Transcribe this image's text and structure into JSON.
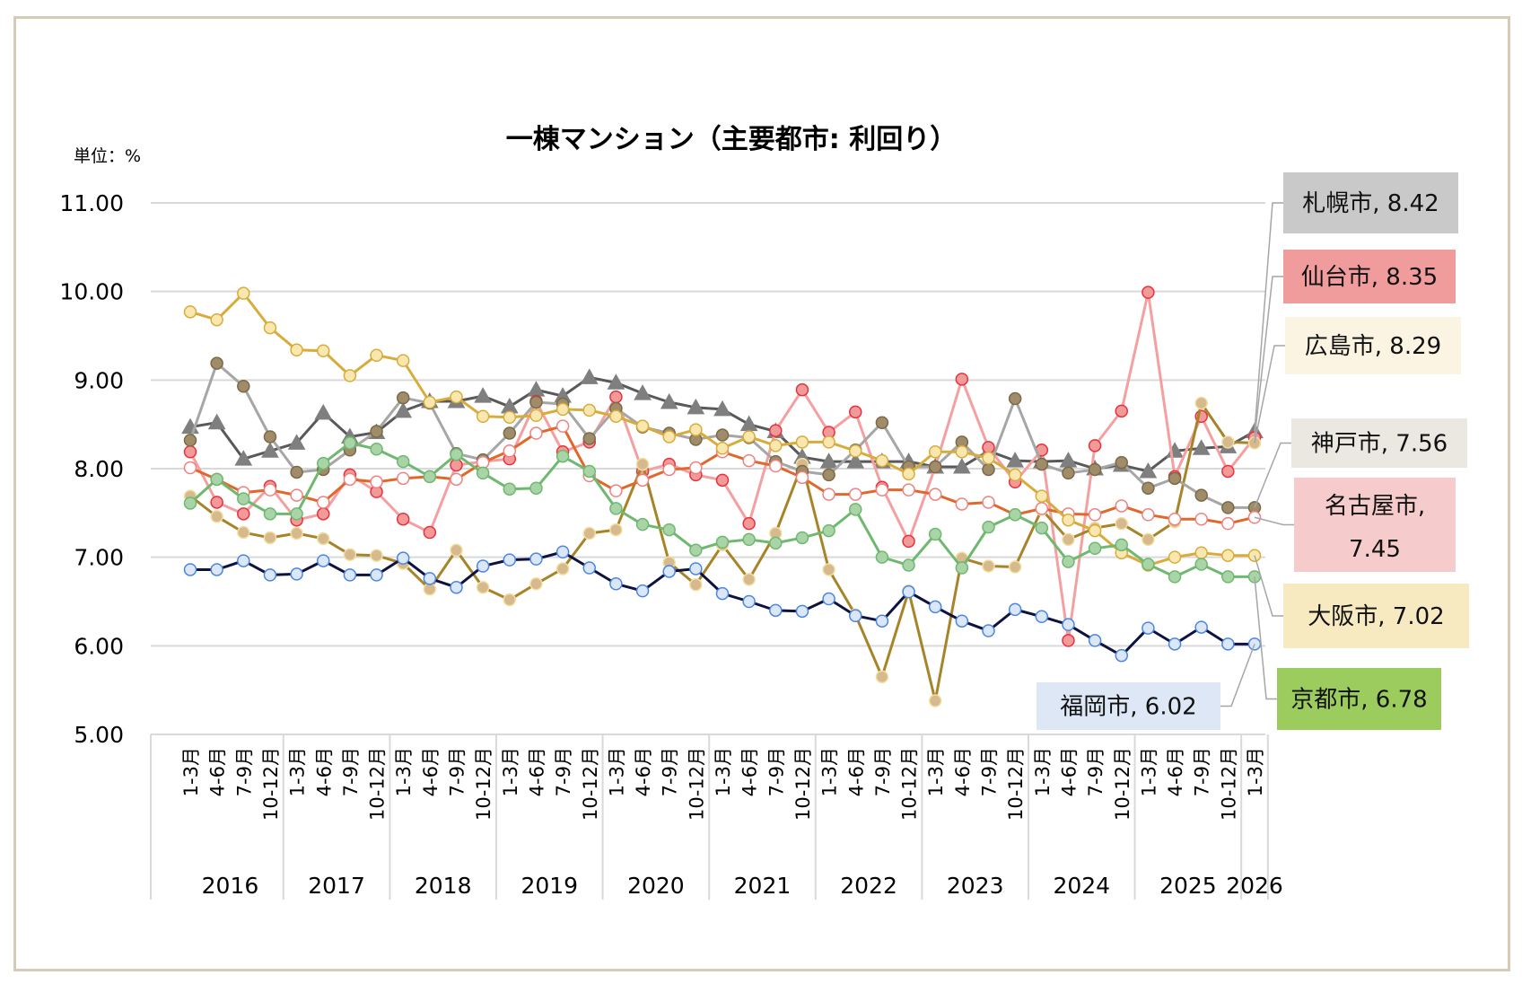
{
  "chart_data": {
    "type": "line",
    "title": "一棟マンション（主要都市: 利回り）",
    "unit_label": "単位：%",
    "xlabel": "",
    "ylabel": "",
    "ylim": [
      5.0,
      11.0
    ],
    "yticks": [
      "5.00",
      "6.00",
      "7.00",
      "8.00",
      "9.00",
      "10.00",
      "11.00"
    ],
    "grid": true,
    "legend": "data-labels-right",
    "quarters": [
      "1-3月",
      "4-6月",
      "7-9月",
      "10-12月"
    ],
    "years": [
      "2016",
      "2017",
      "2018",
      "2019",
      "2020",
      "2021",
      "2022",
      "2023",
      "2024",
      "2025",
      "2026"
    ],
    "x": [
      "2016 1-3月",
      "2016 4-6月",
      "2016 7-9月",
      "2016 10-12月",
      "2017 1-3月",
      "2017 4-6月",
      "2017 7-9月",
      "2017 10-12月",
      "2018 1-3月",
      "2018 4-6月",
      "2018 7-9月",
      "2018 10-12月",
      "2019 1-3月",
      "2019 4-6月",
      "2019 7-9月",
      "2019 10-12月",
      "2020 1-3月",
      "2020 4-6月",
      "2020 7-9月",
      "2020 10-12月",
      "2021 1-3月",
      "2021 4-6月",
      "2021 7-9月",
      "2021 10-12月",
      "2022 1-3月",
      "2022 4-6月",
      "2022 7-9月",
      "2022 10-12月",
      "2023 1-3月",
      "2023 4-6月",
      "2023 7-9月",
      "2023 10-12月",
      "2024 1-3月",
      "2024 4-6月",
      "2024 7-9月",
      "2024 10-12月",
      "2025 1-3月",
      "2025 4-6月",
      "2025 7-9月",
      "2025 10-12月",
      "2026 1-3月"
    ],
    "series": [
      {
        "name": "札幌市",
        "final_label": "札幌市, 8.42",
        "line": "#595959",
        "marker": "triangle",
        "fill": "#7f7f7f",
        "stroke": "#7f7f7f",
        "label_bg": "#c9c9c9",
        "values": [
          8.47,
          8.52,
          8.11,
          8.2,
          8.29,
          8.63,
          8.36,
          8.41,
          8.65,
          8.76,
          8.76,
          8.82,
          8.7,
          8.89,
          8.82,
          9.03,
          8.97,
          8.85,
          8.75,
          8.69,
          8.67,
          8.5,
          8.42,
          8.13,
          8.08,
          8.08,
          8.08,
          8.08,
          8.02,
          8.02,
          8.2,
          8.09,
          8.08,
          8.09,
          8.0,
          8.04,
          7.97,
          8.2,
          8.23,
          8.25,
          8.42
        ]
      },
      {
        "name": "仙台市",
        "final_label": "仙台市, 8.35",
        "line": "#f4a0a0",
        "marker": "circle",
        "fill": "#f29a9a",
        "stroke": "#e8313b",
        "label_bg": "#f19c9c",
        "values": [
          8.19,
          7.62,
          7.49,
          7.8,
          7.42,
          7.49,
          7.93,
          7.74,
          7.43,
          7.28,
          8.04,
          8.08,
          8.11,
          8.76,
          8.19,
          8.3,
          8.81,
          7.97,
          8.05,
          7.93,
          7.87,
          7.38,
          8.43,
          8.89,
          8.41,
          8.64,
          7.79,
          7.18,
          8.02,
          9.01,
          8.24,
          7.85,
          8.21,
          6.06,
          8.26,
          8.65,
          9.99,
          7.91,
          8.59,
          7.97,
          8.35
        ]
      },
      {
        "name": "広島市",
        "final_label": "広島市, 8.29",
        "line": "#a88429",
        "marker": "circle",
        "fill": "#d6b98c",
        "stroke": "#f2dfa0",
        "label_bg": "#fbf4e2",
        "values": [
          7.69,
          7.46,
          7.28,
          7.22,
          7.27,
          7.21,
          7.03,
          7.02,
          6.93,
          6.64,
          7.08,
          6.66,
          6.52,
          6.7,
          6.87,
          7.27,
          7.31,
          8.05,
          6.94,
          6.69,
          7.14,
          6.75,
          7.27,
          8.05,
          6.86,
          6.35,
          5.65,
          6.62,
          5.38,
          6.99,
          6.9,
          6.89,
          7.54,
          7.2,
          7.33,
          7.38,
          7.2,
          7.4,
          8.74,
          8.3,
          8.29
        ]
      },
      {
        "name": "神戸市",
        "final_label": "神戸市, 7.56",
        "line": "#a6a6a6",
        "marker": "circle",
        "fill": "#a08c68",
        "stroke": "#7a6a48",
        "label_bg": "#ebe7e1",
        "values": [
          8.32,
          9.19,
          8.93,
          8.36,
          7.96,
          7.99,
          8.21,
          8.42,
          8.8,
          8.74,
          8.17,
          8.1,
          8.4,
          8.75,
          8.73,
          8.34,
          8.68,
          8.47,
          8.4,
          8.33,
          8.38,
          8.35,
          8.08,
          7.97,
          7.93,
          8.21,
          8.52,
          8.02,
          8.02,
          8.3,
          7.99,
          8.79,
          8.05,
          7.95,
          7.99,
          8.07,
          7.78,
          7.89,
          7.7,
          7.56,
          7.56
        ]
      },
      {
        "name": "名古屋市",
        "final_label": "名古屋市, 7.45",
        "line": "#e0682a",
        "marker": "circle",
        "fill": "#ffffff",
        "stroke": "#f08080",
        "label_bg": "#f6cbcb",
        "values": [
          8.01,
          7.88,
          7.73,
          7.76,
          7.7,
          7.62,
          7.88,
          7.85,
          7.89,
          7.91,
          7.88,
          8.07,
          8.2,
          8.4,
          8.48,
          7.92,
          7.75,
          7.87,
          7.99,
          8.01,
          8.19,
          8.09,
          8.03,
          7.9,
          7.71,
          7.71,
          7.76,
          7.76,
          7.71,
          7.6,
          7.62,
          7.48,
          7.55,
          7.49,
          7.48,
          7.58,
          7.48,
          7.43,
          7.43,
          7.38,
          7.45
        ]
      },
      {
        "name": "大阪市",
        "final_label": "大阪市, 7.02",
        "line": "#d9ab3a",
        "marker": "circle",
        "fill": "#f8e8b0",
        "stroke": "#d9ab3a",
        "label_bg": "#f7e9c0",
        "values": [
          9.77,
          9.68,
          9.98,
          9.59,
          9.34,
          9.33,
          9.05,
          9.28,
          9.22,
          8.75,
          8.81,
          8.59,
          8.58,
          8.6,
          8.67,
          8.66,
          8.59,
          8.48,
          8.36,
          8.44,
          8.23,
          8.36,
          8.26,
          8.3,
          8.3,
          8.2,
          8.09,
          7.94,
          8.19,
          8.19,
          8.12,
          7.93,
          7.69,
          7.42,
          7.3,
          7.05,
          6.91,
          7.0,
          7.05,
          7.02,
          7.02
        ]
      },
      {
        "name": "京都市",
        "final_label": "京都市, 6.78",
        "line": "#6fb86f",
        "marker": "circle",
        "fill": "#a8d4a8",
        "stroke": "#6fb86f",
        "label_bg": "#9ccc5e",
        "values": [
          7.61,
          7.88,
          7.66,
          7.49,
          7.49,
          8.06,
          8.29,
          8.22,
          8.08,
          7.91,
          8.16,
          7.95,
          7.77,
          7.78,
          8.14,
          7.97,
          7.55,
          7.37,
          7.31,
          7.08,
          7.17,
          7.2,
          7.16,
          7.22,
          7.3,
          7.54,
          7.0,
          6.91,
          7.26,
          6.88,
          7.34,
          7.48,
          7.33,
          6.95,
          7.1,
          7.14,
          6.92,
          6.78,
          6.92,
          6.78,
          6.78
        ]
      },
      {
        "name": "福岡市",
        "final_label": "福岡市, 6.02",
        "line": "#0e1240",
        "marker": "circle",
        "fill": "#dbe7f7",
        "stroke": "#4a86e0",
        "label_bg": "#dde7f5",
        "values": [
          6.86,
          6.86,
          6.96,
          6.8,
          6.81,
          6.96,
          6.8,
          6.8,
          6.99,
          6.76,
          6.66,
          6.9,
          6.97,
          6.98,
          7.06,
          6.88,
          6.7,
          6.62,
          6.84,
          6.87,
          6.59,
          6.5,
          6.4,
          6.39,
          6.53,
          6.34,
          6.28,
          6.61,
          6.44,
          6.28,
          6.17,
          6.41,
          6.33,
          6.24,
          6.06,
          5.89,
          6.2,
          6.02,
          6.21,
          6.02,
          6.02
        ]
      }
    ]
  }
}
